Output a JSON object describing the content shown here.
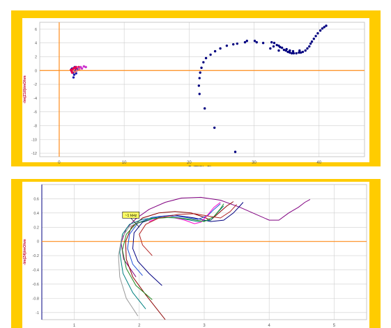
{
  "colors": {
    "frame": "#ffcc00",
    "plot_bg": "#ffffff",
    "grid": "#cfcfcf",
    "zero_line": "#ff8c1a",
    "axis_label": "#c0002a",
    "tick_text": "#555555"
  },
  "chart_data": [
    {
      "type": "scatter",
      "title": "",
      "xlabel": "Re(Z10)/mOhm",
      "ylabel": "-Im(Z10)/mOhm",
      "xlim": [
        -3,
        47
      ],
      "ylim": [
        -12.5,
        7
      ],
      "x_ticks": [
        0,
        10,
        20,
        30,
        40
      ],
      "y_ticks": [
        6,
        4,
        2,
        0,
        -2,
        -4,
        -6,
        -8,
        -10,
        -12
      ],
      "y_tick_labels": [
        "6",
        "4",
        "2",
        "0",
        "-2",
        "-4",
        "-6",
        "-8",
        "-10",
        "-12"
      ],
      "grid": true,
      "legend": "none",
      "series": [
        {
          "color": "#000080",
          "points": [
            [
              27.1,
              -11.8
            ],
            [
              23.9,
              -8.3
            ],
            [
              22.4,
              -5.5
            ],
            [
              21.6,
              -3.4
            ],
            [
              21.5,
              -2.2
            ],
            [
              21.6,
              -1.1
            ],
            [
              21.7,
              -0.3
            ],
            [
              21.9,
              0.4
            ],
            [
              22.2,
              1.2
            ],
            [
              22.6,
              1.8
            ],
            [
              23.3,
              2.3
            ],
            [
              24.0,
              2.8
            ],
            [
              24.8,
              3.2
            ],
            [
              25.8,
              3.6
            ],
            [
              26.8,
              3.8
            ],
            [
              27.4,
              3.9
            ],
            [
              28.6,
              4.1
            ],
            [
              28.9,
              4.3
            ],
            [
              30.1,
              4.3
            ],
            [
              30.4,
              4.1
            ],
            [
              31.4,
              4.0
            ],
            [
              32.7,
              4.1
            ],
            [
              33.1,
              4.0
            ],
            [
              33.5,
              3.7
            ],
            [
              33.8,
              3.6
            ],
            [
              34.3,
              3.3
            ],
            [
              34.6,
              3.0
            ],
            [
              34.9,
              2.9
            ],
            [
              35.2,
              2.7
            ],
            [
              35.5,
              2.6
            ],
            [
              35.8,
              2.5
            ],
            [
              36.1,
              2.5
            ],
            [
              36.5,
              2.5
            ],
            [
              36.9,
              2.6
            ],
            [
              37.2,
              2.6
            ],
            [
              37.5,
              2.7
            ],
            [
              37.9,
              2.9
            ],
            [
              38.2,
              3.2
            ],
            [
              38.5,
              3.5
            ],
            [
              38.7,
              3.9
            ],
            [
              38.9,
              4.2
            ],
            [
              39.2,
              4.6
            ],
            [
              39.5,
              5.0
            ],
            [
              39.8,
              5.4
            ],
            [
              40.2,
              5.8
            ],
            [
              40.5,
              6.1
            ],
            [
              40.8,
              6.3
            ],
            [
              41.1,
              6.5
            ],
            [
              35.0,
              3.1
            ],
            [
              34.0,
              3.4
            ],
            [
              36.0,
              2.8
            ],
            [
              37.0,
              2.9
            ],
            [
              33.0,
              3.5
            ],
            [
              32.5,
              3.2
            ],
            [
              33.8,
              2.9
            ],
            [
              35.5,
              2.9
            ]
          ]
        },
        {
          "color": "#1a1ab0",
          "points": [
            [
              2.2,
              -1.0
            ],
            [
              2.3,
              -0.6
            ],
            [
              2.1,
              -0.3
            ],
            [
              2.5,
              0.0
            ],
            [
              2.8,
              0.2
            ],
            [
              2.0,
              0.3
            ],
            [
              2.4,
              0.5
            ],
            [
              1.9,
              0.2
            ],
            [
              2.6,
              -0.4
            ]
          ]
        },
        {
          "color": "#e6004c",
          "points": [
            [
              1.9,
              -0.1
            ],
            [
              2.1,
              0.2
            ],
            [
              2.3,
              0.4
            ],
            [
              2.6,
              0.5
            ],
            [
              3.0,
              0.5
            ],
            [
              2.0,
              -0.3
            ],
            [
              1.8,
              0.1
            ],
            [
              2.5,
              0.3
            ]
          ]
        },
        {
          "color": "#cc33cc",
          "points": [
            [
              3.3,
              0.5
            ],
            [
              3.8,
              0.6
            ],
            [
              4.1,
              0.5
            ],
            [
              3.5,
              0.3
            ],
            [
              3.0,
              0.3
            ]
          ]
        },
        {
          "color": "#e67373",
          "points": [
            [
              2.7,
              0.0
            ],
            [
              3.1,
              0.2
            ],
            [
              2.4,
              -0.2
            ]
          ]
        }
      ]
    },
    {
      "type": "line",
      "title": "",
      "xlabel": "Re(Z4)/mOhm",
      "ylabel": "-Im(Z4)/mOhm",
      "xlim": [
        0.5,
        5.5
      ],
      "ylim": [
        -1.1,
        0.8
      ],
      "x_ticks": [
        1,
        2,
        3,
        4,
        5
      ],
      "y_ticks": [
        0.6,
        0.4,
        0.2,
        0,
        -0.2,
        -0.4,
        -0.6,
        -0.8,
        -1
      ],
      "y_tick_labels": [
        "0.6",
        "0.4",
        "0.2",
        "0",
        "-0.2",
        "-0.4",
        "-0.6",
        "-0.8",
        "-1"
      ],
      "grid": true,
      "legend": "none",
      "annotation": {
        "text": "~1 kHz",
        "x": 2.0,
        "y": 0.2
      },
      "series": [
        {
          "color": "#800080",
          "points": [
            [
              1.95,
              -0.5
            ],
            [
              1.76,
              -0.25
            ],
            [
              1.72,
              -0.02
            ],
            [
              1.8,
              0.18
            ],
            [
              1.95,
              0.32
            ],
            [
              2.15,
              0.45
            ],
            [
              2.4,
              0.55
            ],
            [
              2.65,
              0.61
            ],
            [
              2.95,
              0.62
            ],
            [
              3.25,
              0.58
            ],
            [
              3.55,
              0.48
            ],
            [
              3.8,
              0.38
            ],
            [
              4.0,
              0.3
            ],
            [
              4.15,
              0.3
            ],
            [
              4.3,
              0.4
            ],
            [
              4.45,
              0.48
            ],
            [
              4.55,
              0.55
            ],
            [
              4.63,
              0.59
            ]
          ]
        },
        {
          "color": "#8b0000",
          "points": [
            [
              2.4,
              -1.1
            ],
            [
              2.1,
              -0.75
            ],
            [
              1.9,
              -0.5
            ],
            [
              1.8,
              -0.25
            ],
            [
              1.79,
              0.0
            ],
            [
              1.88,
              0.2
            ],
            [
              2.05,
              0.33
            ],
            [
              2.3,
              0.4
            ],
            [
              2.55,
              0.42
            ],
            [
              2.8,
              0.4
            ],
            [
              3.0,
              0.34
            ],
            [
              3.1,
              0.3
            ],
            [
              3.2,
              0.38
            ],
            [
              3.35,
              0.5
            ],
            [
              3.45,
              0.56
            ]
          ]
        },
        {
          "color": "#000080",
          "points": [
            [
              2.35,
              -0.62
            ],
            [
              2.15,
              -0.45
            ],
            [
              1.98,
              -0.28
            ],
            [
              1.9,
              -0.1
            ],
            [
              1.92,
              0.12
            ],
            [
              2.05,
              0.27
            ],
            [
              2.3,
              0.35
            ],
            [
              2.55,
              0.37
            ],
            [
              2.85,
              0.33
            ],
            [
              3.1,
              0.28
            ],
            [
              3.3,
              0.3
            ],
            [
              3.45,
              0.4
            ],
            [
              3.55,
              0.5
            ],
            [
              3.6,
              0.55
            ]
          ]
        },
        {
          "color": "#1f4fd6",
          "points": [
            [
              2.05,
              -0.48
            ],
            [
              1.9,
              -0.32
            ],
            [
              1.82,
              -0.1
            ],
            [
              1.85,
              0.1
            ],
            [
              1.98,
              0.26
            ],
            [
              2.2,
              0.34
            ],
            [
              2.45,
              0.36
            ],
            [
              2.7,
              0.34
            ],
            [
              2.9,
              0.31
            ],
            [
              3.05,
              0.36
            ],
            [
              3.15,
              0.45
            ],
            [
              3.25,
              0.53
            ]
          ]
        },
        {
          "color": "#ff00cc",
          "points": [
            [
              2.15,
              0.28
            ],
            [
              2.3,
              0.33
            ],
            [
              2.5,
              0.34
            ],
            [
              2.7,
              0.3
            ],
            [
              2.85,
              0.25
            ],
            [
              2.95,
              0.27
            ],
            [
              3.05,
              0.37
            ],
            [
              3.15,
              0.48
            ],
            [
              3.25,
              0.55
            ]
          ]
        },
        {
          "color": "#008080",
          "points": [
            [
              2.1,
              -0.95
            ],
            [
              1.9,
              -0.72
            ],
            [
              1.75,
              -0.45
            ],
            [
              1.7,
              -0.15
            ],
            [
              1.74,
              0.1
            ],
            [
              1.85,
              0.24
            ],
            [
              2.05,
              0.31
            ],
            [
              2.3,
              0.34
            ],
            [
              2.6,
              0.33
            ],
            [
              2.9,
              0.28
            ],
            [
              3.1,
              0.3
            ],
            [
              3.2,
              0.4
            ],
            [
              3.3,
              0.5
            ]
          ]
        },
        {
          "color": "#228b22",
          "points": [
            [
              2.2,
              -0.82
            ],
            [
              1.95,
              -0.62
            ],
            [
              1.8,
              -0.38
            ],
            [
              1.74,
              -0.12
            ],
            [
              1.8,
              0.1
            ],
            [
              1.95,
              0.25
            ],
            [
              2.2,
              0.32
            ],
            [
              2.5,
              0.34
            ],
            [
              2.8,
              0.31
            ],
            [
              3.0,
              0.28
            ],
            [
              3.15,
              0.35
            ],
            [
              3.25,
              0.46
            ],
            [
              3.3,
              0.53
            ]
          ]
        },
        {
          "color": "#999999",
          "points": [
            [
              1.98,
              -1.05
            ],
            [
              1.8,
              -0.8
            ],
            [
              1.7,
              -0.5
            ],
            [
              1.68,
              -0.2
            ],
            [
              1.73,
              0.05
            ],
            [
              1.84,
              0.2
            ],
            [
              2.0,
              0.28
            ]
          ]
        },
        {
          "color": "#b22222",
          "points": [
            [
              2.2,
              -0.2
            ],
            [
              2.05,
              -0.05
            ],
            [
              2.0,
              0.1
            ],
            [
              2.1,
              0.24
            ],
            [
              2.3,
              0.33
            ],
            [
              2.6,
              0.38
            ],
            [
              2.85,
              0.39
            ],
            [
              3.1,
              0.35
            ],
            [
              3.25,
              0.33
            ],
            [
              3.4,
              0.42
            ],
            [
              3.5,
              0.52
            ]
          ]
        }
      ]
    }
  ]
}
